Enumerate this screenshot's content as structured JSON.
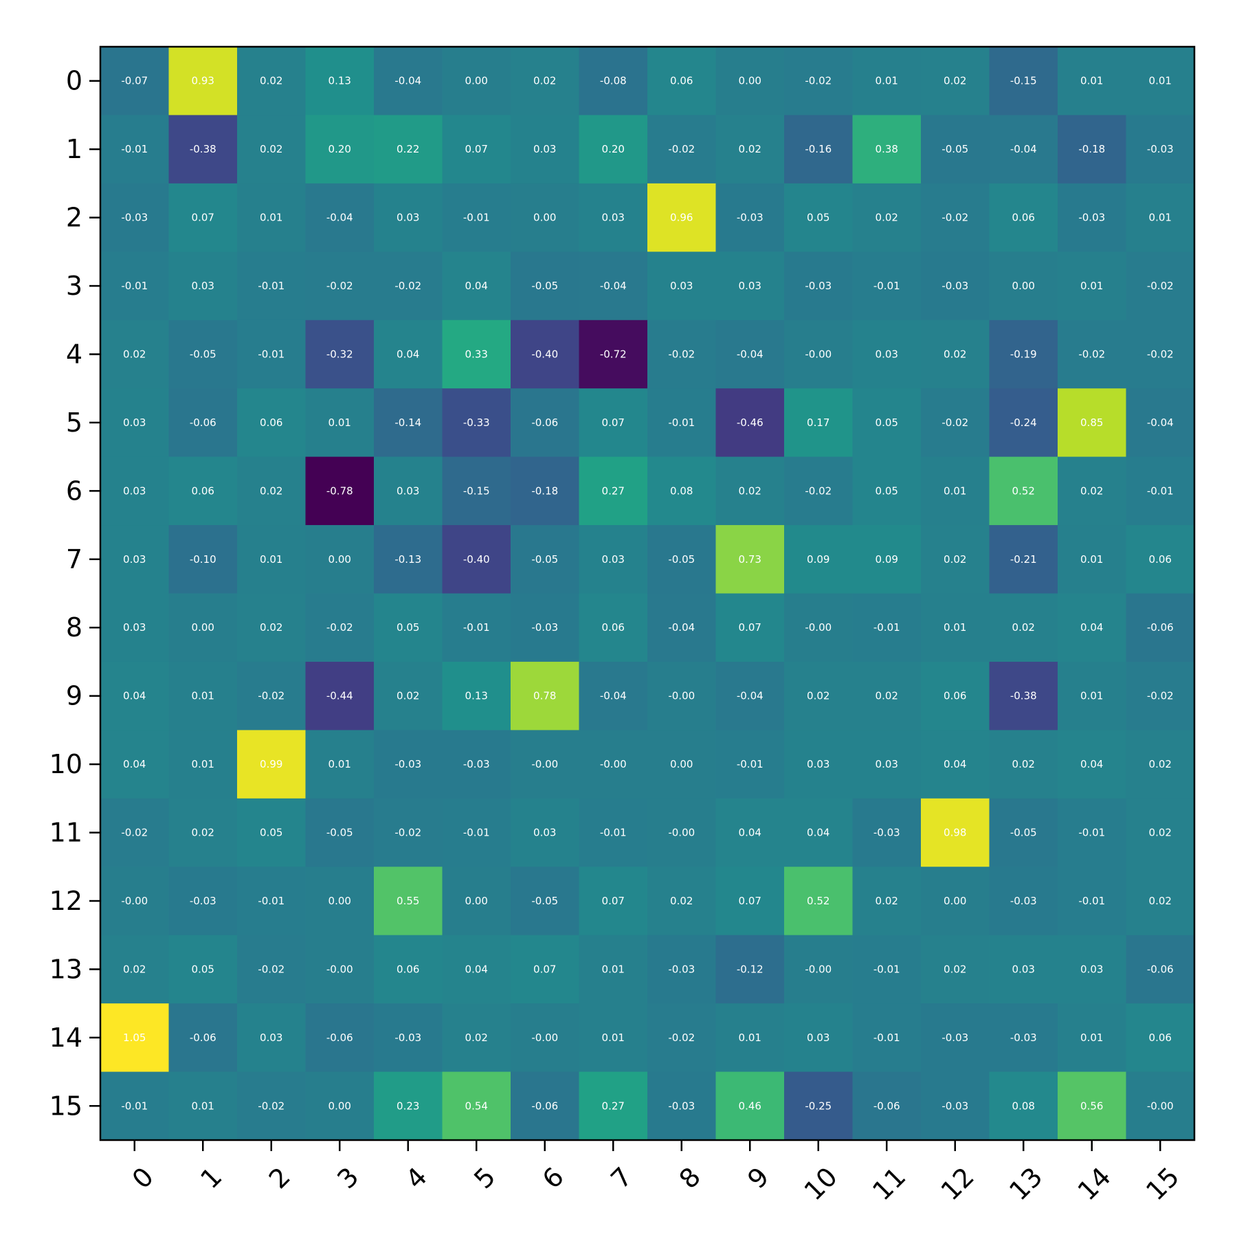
{
  "chart_data": {
    "type": "heatmap",
    "title": "",
    "xlabel": "",
    "ylabel": "",
    "x_ticks": [
      "0",
      "1",
      "2",
      "3",
      "4",
      "5",
      "6",
      "7",
      "8",
      "9",
      "10",
      "11",
      "12",
      "13",
      "14",
      "15"
    ],
    "y_ticks": [
      "0",
      "1",
      "2",
      "3",
      "4",
      "5",
      "6",
      "7",
      "8",
      "9",
      "10",
      "11",
      "12",
      "13",
      "14",
      "15"
    ],
    "colormap": "viridis",
    "value_range": [
      -0.78,
      1.05
    ],
    "grid": false,
    "colorbar": false,
    "cell_labels": true,
    "cell_label_color": "#ffffff",
    "values": [
      [
        -0.07,
        0.93,
        0.02,
        0.13,
        -0.04,
        0.0,
        0.02,
        -0.08,
        0.06,
        0.0,
        -0.02,
        0.01,
        0.02,
        -0.15,
        0.01,
        0.01
      ],
      [
        -0.01,
        -0.38,
        0.02,
        0.2,
        0.22,
        0.07,
        0.03,
        0.2,
        -0.02,
        0.02,
        -0.16,
        0.38,
        -0.05,
        -0.04,
        -0.18,
        -0.03
      ],
      [
        -0.03,
        0.07,
        0.01,
        -0.04,
        0.03,
        -0.01,
        0.0,
        0.03,
        0.96,
        -0.03,
        0.05,
        0.02,
        -0.02,
        0.06,
        -0.03,
        0.01
      ],
      [
        -0.01,
        0.03,
        -0.01,
        -0.02,
        -0.02,
        0.04,
        -0.05,
        -0.04,
        0.03,
        0.03,
        -0.03,
        -0.01,
        -0.03,
        0.0,
        0.01,
        -0.02
      ],
      [
        0.02,
        -0.05,
        -0.01,
        -0.32,
        0.04,
        0.33,
        -0.4,
        -0.72,
        -0.02,
        -0.04,
        -0.0,
        0.03,
        0.02,
        -0.19,
        -0.02,
        -0.02
      ],
      [
        0.03,
        -0.06,
        0.06,
        0.01,
        -0.14,
        -0.33,
        -0.06,
        0.07,
        -0.01,
        -0.46,
        0.17,
        0.05,
        -0.02,
        -0.24,
        0.85,
        -0.04
      ],
      [
        0.03,
        0.06,
        0.02,
        -0.78,
        0.03,
        -0.15,
        -0.18,
        0.27,
        0.08,
        0.02,
        -0.02,
        0.05,
        0.01,
        0.52,
        0.02,
        -0.01
      ],
      [
        0.03,
        -0.1,
        0.01,
        0.0,
        -0.13,
        -0.4,
        -0.05,
        0.03,
        -0.05,
        0.73,
        0.09,
        0.09,
        0.02,
        -0.21,
        0.01,
        0.06
      ],
      [
        0.03,
        0.0,
        0.02,
        -0.02,
        0.05,
        -0.01,
        -0.03,
        0.06,
        -0.04,
        0.07,
        -0.0,
        -0.01,
        0.01,
        0.02,
        0.04,
        -0.06
      ],
      [
        0.04,
        0.01,
        -0.02,
        -0.44,
        0.02,
        0.13,
        0.78,
        -0.04,
        -0.0,
        -0.04,
        0.02,
        0.02,
        0.06,
        -0.38,
        0.01,
        -0.02
      ],
      [
        0.04,
        0.01,
        0.99,
        0.01,
        -0.03,
        -0.03,
        -0.0,
        -0.0,
        0.0,
        -0.01,
        0.03,
        0.03,
        0.04,
        0.02,
        0.04,
        0.02
      ],
      [
        -0.02,
        0.02,
        0.05,
        -0.05,
        -0.02,
        -0.01,
        0.03,
        -0.01,
        -0.0,
        0.04,
        0.04,
        -0.03,
        0.98,
        -0.05,
        -0.01,
        0.02
      ],
      [
        -0.0,
        -0.03,
        -0.01,
        0.0,
        0.55,
        0.0,
        -0.05,
        0.07,
        0.02,
        0.07,
        0.52,
        0.02,
        0.0,
        -0.03,
        -0.01,
        0.02
      ],
      [
        0.02,
        0.05,
        -0.02,
        -0.0,
        0.06,
        0.04,
        0.07,
        0.01,
        -0.03,
        -0.12,
        -0.0,
        -0.01,
        0.02,
        0.03,
        0.03,
        -0.06
      ],
      [
        1.05,
        -0.06,
        0.03,
        -0.06,
        -0.03,
        0.02,
        -0.0,
        0.01,
        -0.02,
        0.01,
        0.03,
        -0.01,
        -0.03,
        -0.03,
        0.01,
        0.06
      ],
      [
        -0.01,
        0.01,
        -0.02,
        0.0,
        0.23,
        0.54,
        -0.06,
        0.27,
        -0.03,
        0.46,
        -0.25,
        -0.06,
        -0.03,
        0.08,
        0.56,
        -0.0
      ]
    ]
  }
}
